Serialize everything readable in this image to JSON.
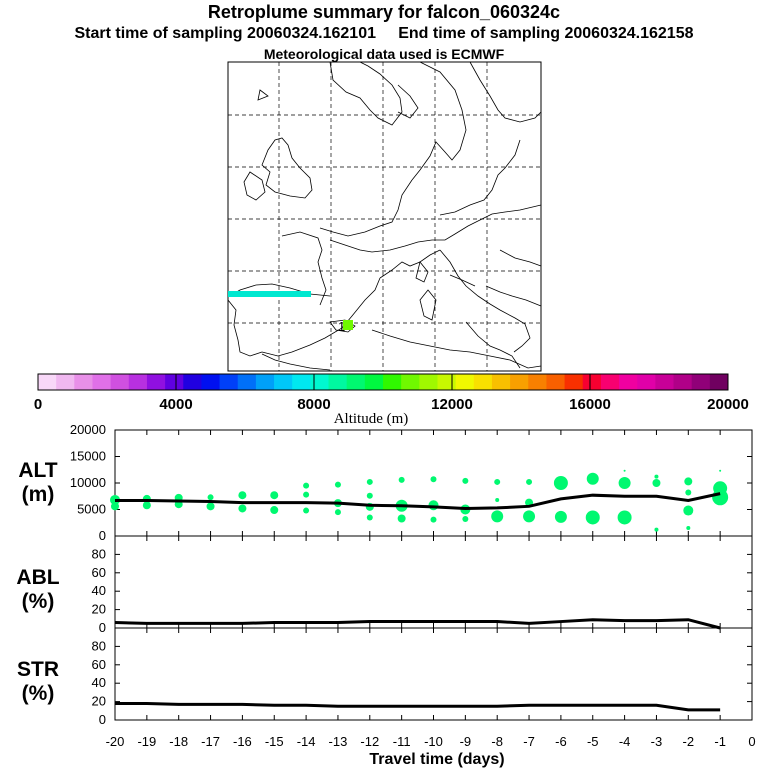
{
  "header": {
    "title": "Retroplume summary for falcon_060324c",
    "start_label": "Start time of sampling 20060324.162101",
    "end_label": "End time of sampling 20060324.162158",
    "met_label": "Meteorological data used is ECMWF"
  },
  "map": {
    "release_marker": "1"
  },
  "colorbar": {
    "label": "Altitude (m)",
    "ticks": [
      "0",
      "4000",
      "8000",
      "12000",
      "16000",
      "20000"
    ],
    "range": [
      0,
      20000
    ],
    "colors": [
      "#f8d8f8",
      "#f0b8f0",
      "#e890e8",
      "#e070e8",
      "#d050e0",
      "#b830e0",
      "#9010e0",
      "#6000e0",
      "#2000e0",
      "#0010f0",
      "#0040f8",
      "#0070f8",
      "#00a0f8",
      "#00c8f8",
      "#00e8f0",
      "#00f8d0",
      "#00f8a0",
      "#00f870",
      "#00f840",
      "#30f800",
      "#70f800",
      "#a0f800",
      "#c8f800",
      "#f0f800",
      "#f8e000",
      "#f8c000",
      "#f8a000",
      "#f88000",
      "#f86000",
      "#f83000",
      "#f80030",
      "#f80070",
      "#f000a0",
      "#e000a8",
      "#c80098",
      "#b00088",
      "#900078",
      "#700060"
    ]
  },
  "chart_data": [
    {
      "type": "scatter",
      "name": "ALT",
      "ylabel": "ALT (m)",
      "ylabel_lines": [
        "ALT",
        "(m)"
      ],
      "ylim": [
        0,
        20000
      ],
      "yticks": [
        "0",
        "5000",
        "10000",
        "15000",
        "20000"
      ],
      "x": [
        -20,
        -19,
        -18,
        -17,
        -16,
        -15,
        -14,
        -13,
        -12,
        -11,
        -10,
        -9,
        -8,
        -7,
        -6,
        -5,
        -4,
        -3,
        -2,
        -1
      ],
      "mean_line": [
        6700,
        6700,
        6600,
        6500,
        6300,
        6300,
        6300,
        6200,
        5800,
        5700,
        5500,
        5200,
        5300,
        5600,
        7000,
        7700,
        7500,
        7500,
        6700,
        8000
      ],
      "point_color": "#00f870",
      "clusters": [
        {
          "x": -20,
          "y": 6800,
          "r": 5
        },
        {
          "x": -20,
          "y": 5600,
          "r": 4
        },
        {
          "x": -19,
          "y": 7000,
          "r": 4
        },
        {
          "x": -19,
          "y": 5800,
          "r": 4
        },
        {
          "x": -18,
          "y": 7200,
          "r": 4
        },
        {
          "x": -18,
          "y": 6000,
          "r": 4
        },
        {
          "x": -17,
          "y": 7300,
          "r": 3
        },
        {
          "x": -17,
          "y": 5600,
          "r": 4
        },
        {
          "x": -16,
          "y": 7700,
          "r": 4
        },
        {
          "x": -16,
          "y": 5200,
          "r": 4
        },
        {
          "x": -15,
          "y": 7700,
          "r": 4
        },
        {
          "x": -15,
          "y": 4900,
          "r": 4
        },
        {
          "x": -14,
          "y": 9500,
          "r": 3
        },
        {
          "x": -14,
          "y": 7800,
          "r": 3
        },
        {
          "x": -14,
          "y": 4800,
          "r": 3
        },
        {
          "x": -13,
          "y": 9700,
          "r": 3
        },
        {
          "x": -13,
          "y": 6200,
          "r": 4
        },
        {
          "x": -13,
          "y": 4500,
          "r": 3
        },
        {
          "x": -12,
          "y": 10200,
          "r": 3
        },
        {
          "x": -12,
          "y": 7600,
          "r": 3
        },
        {
          "x": -12,
          "y": 5500,
          "r": 4
        },
        {
          "x": -12,
          "y": 3500,
          "r": 3
        },
        {
          "x": -11,
          "y": 10600,
          "r": 3
        },
        {
          "x": -11,
          "y": 5700,
          "r": 6
        },
        {
          "x": -11,
          "y": 3300,
          "r": 4
        },
        {
          "x": -10,
          "y": 10700,
          "r": 3
        },
        {
          "x": -10,
          "y": 5800,
          "r": 5
        },
        {
          "x": -10,
          "y": 3100,
          "r": 3
        },
        {
          "x": -9,
          "y": 10400,
          "r": 3
        },
        {
          "x": -9,
          "y": 5000,
          "r": 5
        },
        {
          "x": -9,
          "y": 3200,
          "r": 3
        },
        {
          "x": -8,
          "y": 10200,
          "r": 3
        },
        {
          "x": -8,
          "y": 6800,
          "r": 2
        },
        {
          "x": -8,
          "y": 3700,
          "r": 6
        },
        {
          "x": -7,
          "y": 10200,
          "r": 3
        },
        {
          "x": -7,
          "y": 6300,
          "r": 4
        },
        {
          "x": -7,
          "y": 3700,
          "r": 6
        },
        {
          "x": -6,
          "y": 10000,
          "r": 7
        },
        {
          "x": -6,
          "y": 3600,
          "r": 6
        },
        {
          "x": -5,
          "y": 10800,
          "r": 6
        },
        {
          "x": -5,
          "y": 3500,
          "r": 7
        },
        {
          "x": -4,
          "y": 12300,
          "r": 1
        },
        {
          "x": -4,
          "y": 10000,
          "r": 6
        },
        {
          "x": -4,
          "y": 3500,
          "r": 7
        },
        {
          "x": -3,
          "y": 11200,
          "r": 2
        },
        {
          "x": -3,
          "y": 10000,
          "r": 4
        },
        {
          "x": -3,
          "y": 1200,
          "r": 2
        },
        {
          "x": -2,
          "y": 10300,
          "r": 4
        },
        {
          "x": -2,
          "y": 8200,
          "r": 3
        },
        {
          "x": -2,
          "y": 4800,
          "r": 5
        },
        {
          "x": -2,
          "y": 1500,
          "r": 2
        },
        {
          "x": -1,
          "y": 12300,
          "r": 1
        },
        {
          "x": -1,
          "y": 9000,
          "r": 7
        },
        {
          "x": -1,
          "y": 7300,
          "r": 8
        }
      ]
    },
    {
      "type": "line",
      "name": "ABL",
      "ylabel": "ABL (%)",
      "ylabel_lines": [
        "ABL",
        "(%)"
      ],
      "ylim": [
        0,
        100
      ],
      "yticks": [
        "0",
        "20",
        "40",
        "60",
        "80"
      ],
      "x": [
        -20,
        -19,
        -18,
        -17,
        -16,
        -15,
        -14,
        -13,
        -12,
        -11,
        -10,
        -9,
        -8,
        -7,
        -6,
        -5,
        -4,
        -3,
        -2,
        -1
      ],
      "values": [
        6,
        5,
        5,
        5,
        5,
        6,
        6,
        6,
        7,
        7,
        7,
        7,
        7,
        5,
        7,
        9,
        8,
        8,
        9,
        0
      ]
    },
    {
      "type": "line",
      "name": "STR",
      "ylabel": "STR (%)",
      "ylabel_lines": [
        "STR",
        "(%)"
      ],
      "ylim": [
        0,
        100
      ],
      "yticks": [
        "0",
        "20",
        "40",
        "60",
        "80"
      ],
      "x": [
        -20,
        -19,
        -18,
        -17,
        -16,
        -15,
        -14,
        -13,
        -12,
        -11,
        -10,
        -9,
        -8,
        -7,
        -6,
        -5,
        -4,
        -3,
        -2,
        -1
      ],
      "values": [
        18,
        18,
        17,
        17,
        17,
        16,
        16,
        15,
        15,
        15,
        15,
        15,
        15,
        16,
        16,
        16,
        16,
        16,
        11,
        11
      ]
    }
  ],
  "x_axis": {
    "label": "Travel time (days)",
    "ticks": [
      "-20",
      "-19",
      "-18",
      "-17",
      "-16",
      "-15",
      "-14",
      "-13",
      "-12",
      "-11",
      "-10",
      "-9",
      "-8",
      "-7",
      "-6",
      "-5",
      "-4",
      "-3",
      "-2",
      "-1",
      "0"
    ]
  }
}
